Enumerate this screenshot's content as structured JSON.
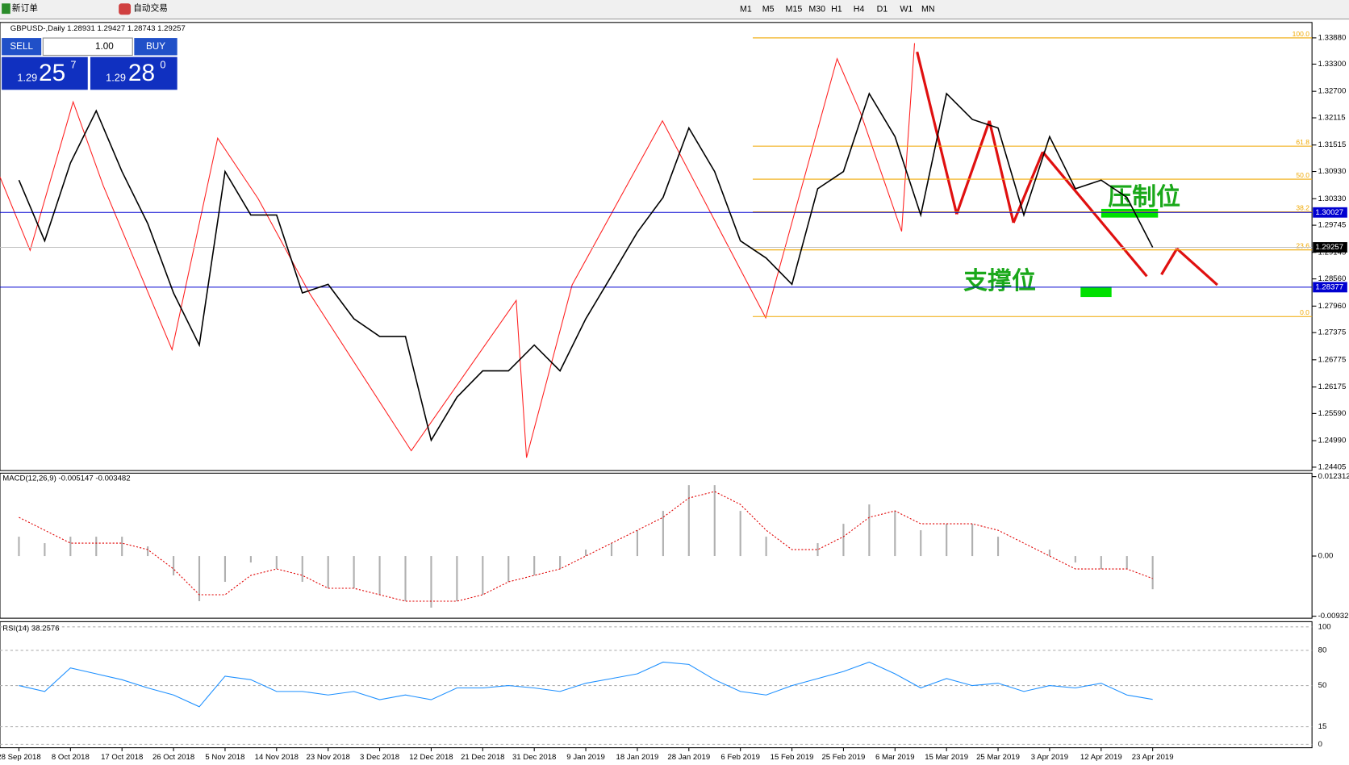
{
  "toolbar": {
    "new_order": "新订单",
    "auto_trading": "自动交易",
    "timeframes": [
      "M1",
      "M5",
      "M15",
      "M30",
      "H1",
      "H4",
      "D1",
      "W1",
      "MN"
    ]
  },
  "trade_panel": {
    "sell": "SELL",
    "lots": "1.00",
    "buy": "BUY",
    "bid_big": "1.29",
    "bid_pips": "25",
    "bid_frac": "7",
    "ask_big": "1.29",
    "ask_pips": "28",
    "ask_frac": "0"
  },
  "chart_data": [
    {
      "type": "line",
      "title": "GBPUSD-,Daily 1.28931 1.29427 1.28743 1.29257",
      "color": "#000000",
      "categories": [
        "28 Sep 2018",
        null,
        "8 Oct 2018",
        null,
        "17 Oct 2018",
        null,
        "26 Oct 2018",
        null,
        "5 Nov 2018",
        null,
        "14 Nov 2018",
        null,
        "23 Nov 2018",
        null,
        "3 Dec 2018",
        null,
        "12 Dec 2018",
        null,
        "21 Dec 2018",
        null,
        "31 Dec 2018",
        null,
        "9 Jan 2019",
        null,
        "18 Jan 2019",
        null,
        "28 Jan 2019",
        null,
        "6 Feb 2019",
        null,
        "15 Feb 2019",
        null,
        "25 Feb 2019",
        null,
        "6 Mar 2019",
        null,
        "15 Mar 2019",
        null,
        "25 Mar 2019",
        null,
        "3 Apr 2019",
        null,
        "12 Apr 2019",
        null,
        "23 Apr 2019"
      ],
      "values": [
        1.3074,
        1.294,
        1.3112,
        1.3227,
        1.3093,
        1.2978,
        1.2825,
        1.271,
        1.3093,
        1.2997,
        1.2997,
        1.2825,
        1.2844,
        1.2768,
        1.2729,
        1.2729,
        1.25,
        1.2595,
        1.2653,
        1.2653,
        1.271,
        1.2653,
        1.2768,
        1.2863,
        1.2959,
        1.3036,
        1.3189,
        1.3093,
        1.294,
        1.2902,
        1.2844,
        1.3055,
        1.3093,
        1.3265,
        1.317,
        1.2997,
        1.3265,
        1.3208,
        1.3189,
        1.2997,
        1.317,
        1.3055,
        1.3074,
        1.3036,
        1.29257
      ],
      "ylim": [
        1.2433,
        1.3422
      ],
      "yticks": [
        {
          "value": 1.3388,
          "label": "1.33880"
        },
        {
          "value": 1.333,
          "label": "1.33300"
        },
        {
          "value": 1.327,
          "label": "1.32700"
        },
        {
          "value": 1.32115,
          "label": "1.32115"
        },
        {
          "value": 1.31515,
          "label": "1.31515"
        },
        {
          "value": 1.3093,
          "label": "1.30930"
        },
        {
          "value": 1.3033,
          "label": "1.30330"
        },
        {
          "value": 1.29745,
          "label": "1.29745"
        },
        {
          "value": 1.29145,
          "label": "1.29145"
        },
        {
          "value": 1.2856,
          "label": "1.28560"
        },
        {
          "value": 1.2796,
          "label": "1.27960"
        },
        {
          "value": 1.27375,
          "label": "1.27375"
        },
        {
          "value": 1.26775,
          "label": "1.26775"
        },
        {
          "value": 1.26175,
          "label": "1.26175"
        },
        {
          "value": 1.2559,
          "label": "1.25590"
        },
        {
          "value": 1.2499,
          "label": "1.24990"
        },
        {
          "value": 1.24405,
          "label": "1.24405"
        }
      ],
      "hlines": [
        {
          "value": 1.30027,
          "label": "1.30027"
        },
        {
          "value": 1.28377,
          "label": "1.28377"
        }
      ],
      "current": {
        "value": 1.29257,
        "label": "1.29257"
      },
      "fib_levels": [
        {
          "label": "100.0",
          "price": 1.3388
        },
        {
          "label": "61.8",
          "price": 1.3149
        },
        {
          "label": "50.0",
          "price": 1.3076
        },
        {
          "label": "38.2",
          "price": 1.3004
        },
        {
          "label": "23.6",
          "price": 1.292
        },
        {
          "label": "0.0",
          "price": 1.2773
        }
      ],
      "annotations": [
        "压制位",
        "支撑位"
      ]
    },
    {
      "type": "macd",
      "title": "MACD(12,26,9) -0.005147 -0.003482",
      "histogram": [
        0.003,
        0.002,
        0.003,
        0.003,
        0.003,
        0.0015,
        -0.003,
        -0.007,
        -0.004,
        -0.001,
        -0.002,
        -0.004,
        -0.005,
        -0.005,
        -0.006,
        -0.007,
        -0.008,
        -0.007,
        -0.006,
        -0.004,
        -0.003,
        -0.002,
        0.001,
        0.002,
        0.004,
        0.007,
        0.011,
        0.011,
        0.007,
        0.003,
        0,
        0.002,
        0.005,
        0.008,
        0.007,
        0.004,
        0.005,
        0.005,
        0.003,
        0,
        0.001,
        -0.001,
        -0.002,
        -0.002,
        -0.005147
      ],
      "signal": [
        0.006,
        0.004,
        0.002,
        0.002,
        0.002,
        0.001,
        -0.002,
        -0.006,
        -0.006,
        -0.003,
        -0.002,
        -0.003,
        -0.005,
        -0.005,
        -0.006,
        -0.007,
        -0.007,
        -0.007,
        -0.006,
        -0.004,
        -0.003,
        -0.002,
        0,
        0.002,
        0.004,
        0.006,
        0.009,
        0.01,
        0.008,
        0.004,
        0.001,
        0.001,
        0.003,
        0.006,
        0.007,
        0.005,
        0.005,
        0.005,
        0.004,
        0.002,
        0,
        -0.002,
        -0.002,
        -0.002,
        -0.003482
      ],
      "hist_color": "#b0b0b0",
      "signal_color": "#e00000",
      "ylim": [
        -0.00964,
        0.01285
      ],
      "yticks": [
        {
          "value": 0.012312,
          "label": "0.012312"
        },
        {
          "value": 0,
          "label": "0.00"
        },
        {
          "value": -0.009328,
          "label": "-0.009328"
        }
      ]
    },
    {
      "type": "rsi",
      "title": "RSI(14) 38.2576",
      "color": "#1e90ff",
      "values": [
        50,
        45,
        65,
        60,
        55,
        48,
        42,
        32,
        58,
        55,
        45,
        45,
        42,
        45,
        38,
        42,
        38,
        48,
        48,
        50,
        48,
        45,
        52,
        56,
        60,
        70,
        68,
        55,
        45,
        42,
        50,
        56,
        62,
        70,
        60,
        48,
        56,
        50,
        52,
        45,
        50,
        48,
        52,
        42,
        38.2576
      ],
      "ylim": [
        -2.9,
        104.4
      ],
      "yticks": [
        100,
        80,
        50,
        15,
        0
      ]
    }
  ]
}
